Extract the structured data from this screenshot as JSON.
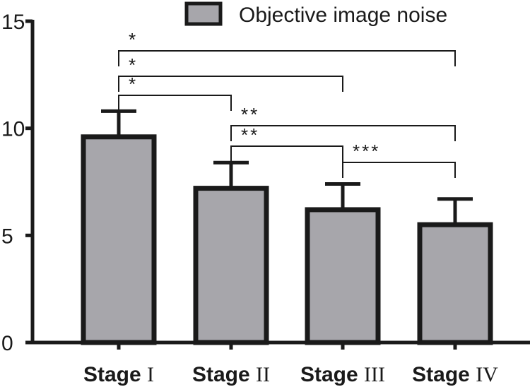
{
  "chart_data": {
    "type": "bar",
    "categories": [
      {
        "bold": "Stage",
        "roman": "I"
      },
      {
        "bold": "Stage",
        "roman": "II"
      },
      {
        "bold": "Stage",
        "roman": "III"
      },
      {
        "bold": "Stage",
        "roman": "IV"
      }
    ],
    "series": [
      {
        "name": "Objective image noise",
        "values": [
          9.6,
          7.2,
          6.2,
          5.5
        ],
        "errors": [
          1.2,
          1.2,
          1.2,
          1.2
        ],
        "color": "#a7a6ab",
        "edge_color": "#1a1a1a"
      }
    ],
    "ylim": [
      0,
      15
    ],
    "yticks": [
      "0",
      "5",
      "10",
      "15"
    ],
    "ytick_values": [
      0,
      5,
      10,
      15
    ],
    "legend": "top-right",
    "grid": false,
    "significance": [
      {
        "from": 0,
        "to": 3,
        "label": "*"
      },
      {
        "from": 0,
        "to": 2,
        "label": "*"
      },
      {
        "from": 0,
        "to": 1,
        "label": "*"
      },
      {
        "from": 1,
        "to": 3,
        "label": "**"
      },
      {
        "from": 1,
        "to": 2,
        "label": "**"
      },
      {
        "from": 2,
        "to": 3,
        "label": "***"
      }
    ]
  }
}
